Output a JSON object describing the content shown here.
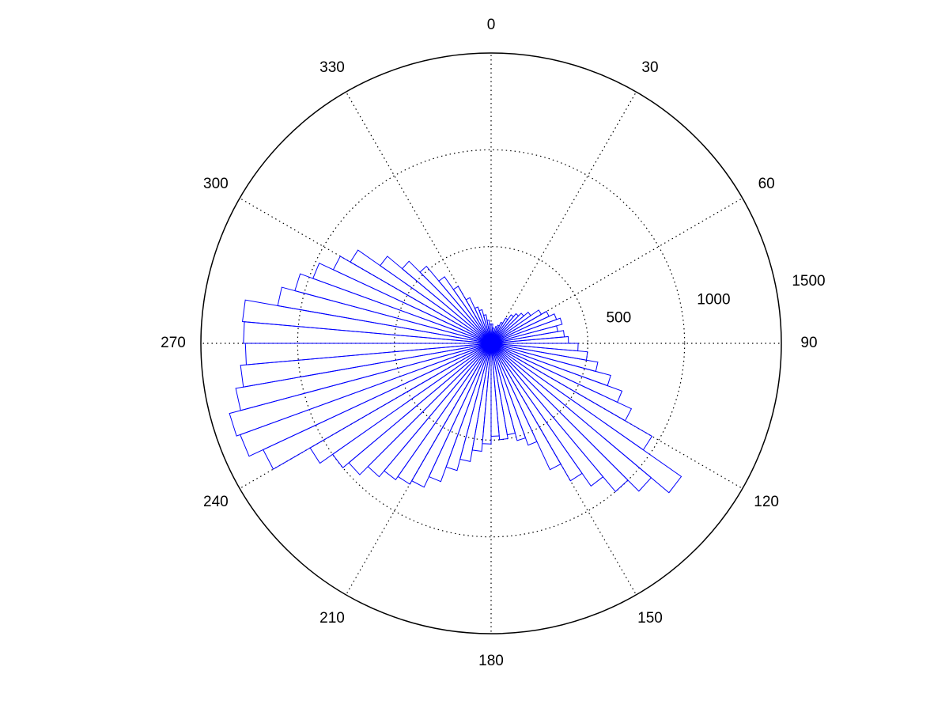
{
  "chart_data": {
    "type": "rose",
    "bins": [
      0,
      5,
      10,
      15,
      20,
      25,
      30,
      35,
      40,
      45,
      50,
      55,
      60,
      65,
      70,
      75,
      80,
      85,
      90,
      95,
      100,
      105,
      110,
      115,
      120,
      125,
      130,
      135,
      140,
      145,
      150,
      155,
      160,
      165,
      170,
      175,
      180,
      185,
      190,
      195,
      200,
      205,
      210,
      215,
      220,
      225,
      230,
      235,
      240,
      245,
      250,
      255,
      260,
      265,
      270,
      275,
      280,
      285,
      290,
      295,
      300,
      305,
      310,
      315,
      320,
      325,
      330,
      335,
      340,
      345,
      350,
      355,
      360
    ],
    "counts": [
      100,
      80,
      60,
      90,
      100,
      120,
      150,
      180,
      200,
      220,
      250,
      300,
      330,
      360,
      380,
      350,
      380,
      400,
      450,
      500,
      560,
      640,
      720,
      800,
      960,
      1200,
      1080,
      1000,
      900,
      820,
      720,
      560,
      520,
      480,
      500,
      480,
      520,
      560,
      620,
      680,
      760,
      820,
      840,
      860,
      900,
      960,
      1000,
      1080,
      1300,
      1380,
      1400,
      1340,
      1300,
      1270,
      1280,
      1290,
      1120,
      1050,
      980,
      900,
      840,
      700,
      600,
      520,
      420,
      340,
      260,
      200,
      180,
      150,
      120,
      100
    ],
    "color": "#0000ff",
    "rlim": [
      0,
      1500
    ],
    "rticks": [
      500,
      1000,
      1500
    ],
    "thetaticks": [
      0,
      30,
      60,
      90,
      120,
      150,
      180,
      210,
      240,
      270,
      300,
      330
    ],
    "grid": true
  }
}
